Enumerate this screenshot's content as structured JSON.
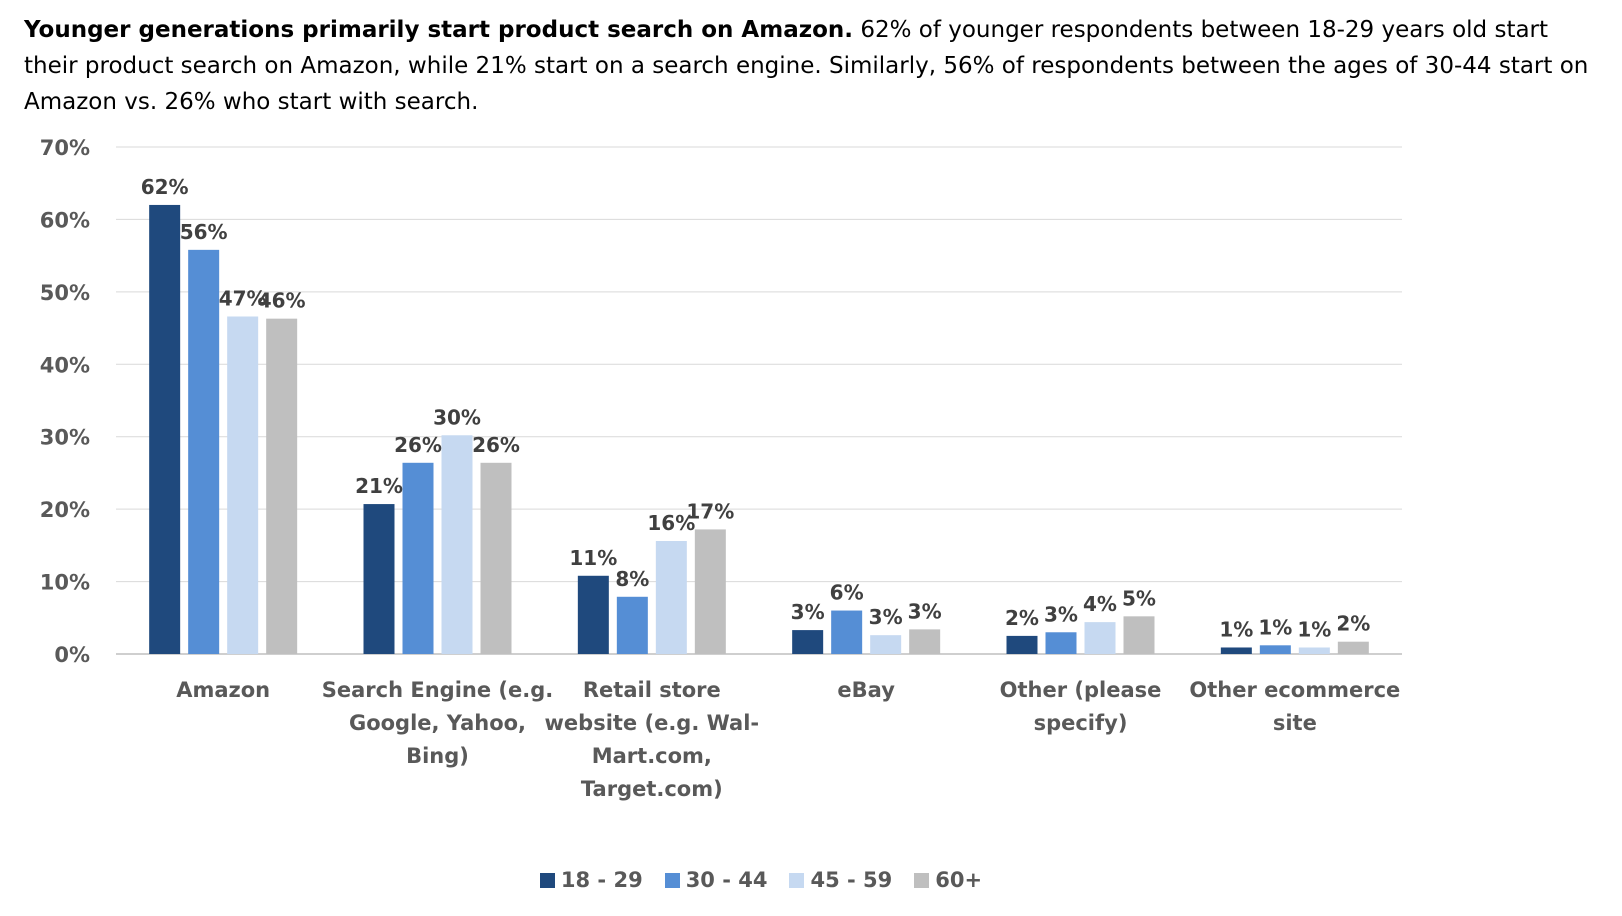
{
  "intro": {
    "bold": "Younger generations primarily start product search on Amazon.",
    "text": " 62% of younger respondents between 18-29 years old start their product search on Amazon, while 21% start on a search engine. Similarly, 56% of respondents between the ages of 30-44 start on Amazon vs. 26% who start with search."
  },
  "chart_data": {
    "type": "bar",
    "title": "",
    "xlabel": "",
    "ylabel": "",
    "ylim": [
      0,
      70
    ],
    "yticks": [
      0,
      10,
      20,
      30,
      40,
      50,
      60,
      70
    ],
    "ytick_labels": [
      "0%",
      "10%",
      "20%",
      "30%",
      "40%",
      "50%",
      "60%",
      "70%"
    ],
    "grid": true,
    "legend_position": "bottom",
    "categories": [
      [
        "Amazon"
      ],
      [
        "Search Engine (e.g.",
        "Google, Yahoo,",
        "Bing)"
      ],
      [
        "Retail store",
        "website (e.g. Wal-",
        "Mart.com,",
        "Target.com)"
      ],
      [
        "eBay"
      ],
      [
        "Other (please",
        "specify)"
      ],
      [
        "Other ecommerce",
        "site"
      ]
    ],
    "series": [
      {
        "name": "18 - 29",
        "color": "#1f497d",
        "values": [
          62,
          20.7,
          10.8,
          3.3,
          2.5,
          0.9
        ],
        "labels": [
          "62%",
          "21%",
          "11%",
          "3%",
          "2%",
          "1%"
        ]
      },
      {
        "name": "30 - 44",
        "color": "#558ed5",
        "values": [
          55.8,
          26.4,
          7.9,
          6.0,
          3.0,
          1.2
        ],
        "labels": [
          "56%",
          "26%",
          "8%",
          "6%",
          "3%",
          "1%"
        ]
      },
      {
        "name": "45 - 59",
        "color": "#c6d9f1",
        "values": [
          46.6,
          30.2,
          15.6,
          2.6,
          4.4,
          0.9
        ],
        "labels": [
          "47%",
          "30%",
          "16%",
          "3%",
          "4%",
          "1%"
        ]
      },
      {
        "name": "60+",
        "color": "#bfbfbf",
        "values": [
          46.3,
          26.4,
          17.2,
          3.4,
          5.2,
          1.7
        ],
        "labels": [
          "46%",
          "26%",
          "17%",
          "3%",
          "5%",
          "2%"
        ]
      }
    ]
  }
}
